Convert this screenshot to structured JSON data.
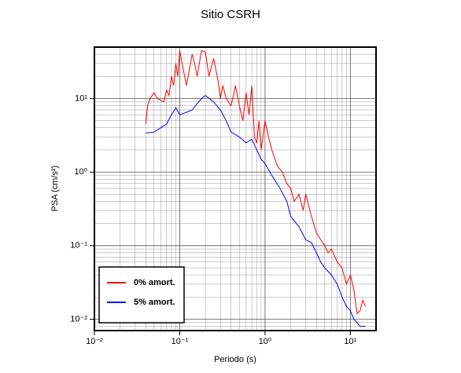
{
  "chart_data": {
    "type": "line",
    "title": "Sitio CSRH",
    "xlabel": "Periodo (s)",
    "ylabel": "PSA (cm/s²)",
    "xscale": "log",
    "yscale": "log",
    "grid": true,
    "legend": "lower left",
    "xlim": [
      0.01,
      20
    ],
    "ylim": [
      0.007,
      50
    ],
    "xticks": [
      {
        "value": 0.01,
        "label": "10⁻²"
      },
      {
        "value": 0.1,
        "label": "10⁻¹"
      },
      {
        "value": 1,
        "label": "10⁰"
      },
      {
        "value": 10,
        "label": "10¹"
      }
    ],
    "yticks": [
      {
        "value": 0.01,
        "label": "10⁻²"
      },
      {
        "value": 0.1,
        "label": "10⁻¹"
      },
      {
        "value": 1,
        "label": "10⁰"
      },
      {
        "value": 10,
        "label": "10¹"
      }
    ],
    "xminorticks": [
      0.02,
      0.03,
      0.04,
      0.05,
      0.06,
      0.07,
      0.08,
      0.09,
      0.2,
      0.3,
      0.4,
      0.5,
      0.6,
      0.7,
      0.8,
      0.9,
      2,
      3,
      4,
      5,
      6,
      7,
      8,
      9
    ],
    "yminorticks": [
      0.008,
      0.009,
      0.02,
      0.03,
      0.04,
      0.05,
      0.06,
      0.07,
      0.08,
      0.09,
      0.2,
      0.3,
      0.4,
      0.5,
      0.6,
      0.7,
      0.8,
      0.9,
      2,
      3,
      4,
      5,
      6,
      7,
      8,
      9,
      20,
      30,
      40
    ],
    "series": [
      {
        "name": "0% amort.",
        "color": "#ff0000",
        "x": [
          0.04,
          0.042,
          0.045,
          0.05,
          0.055,
          0.065,
          0.07,
          0.075,
          0.08,
          0.085,
          0.09,
          0.095,
          0.1,
          0.11,
          0.12,
          0.13,
          0.14,
          0.15,
          0.16,
          0.18,
          0.2,
          0.22,
          0.25,
          0.28,
          0.3,
          0.32,
          0.35,
          0.4,
          0.45,
          0.5,
          0.55,
          0.6,
          0.65,
          0.7,
          0.75,
          0.8,
          0.85,
          0.9,
          1.0,
          1.1,
          1.2,
          1.4,
          1.6,
          1.8,
          2.0,
          2.2,
          2.5,
          2.8,
          3.0,
          3.5,
          4.0,
          4.5,
          5.0,
          5.5,
          6,
          7,
          8,
          9,
          10,
          11,
          12,
          13,
          14,
          15
        ],
        "values": [
          4.5,
          8,
          10,
          12,
          10,
          9,
          13,
          11,
          20,
          15,
          30,
          20,
          45,
          25,
          15,
          25,
          40,
          30,
          20,
          45,
          43,
          20,
          35,
          18,
          10,
          15,
          10,
          8,
          15,
          8,
          5,
          12,
          6,
          15,
          3,
          2.5,
          5,
          2,
          5,
          3,
          2,
          1.2,
          1,
          0.7,
          0.6,
          0.4,
          0.5,
          0.3,
          0.5,
          0.25,
          0.15,
          0.12,
          0.1,
          0.08,
          0.09,
          0.06,
          0.05,
          0.03,
          0.04,
          0.025,
          0.012,
          0.013,
          0.018,
          0.015
        ]
      },
      {
        "name": "5% amort.",
        "color": "#0000ff",
        "x": [
          0.04,
          0.05,
          0.06,
          0.07,
          0.08,
          0.09,
          0.1,
          0.12,
          0.14,
          0.16,
          0.18,
          0.2,
          0.25,
          0.3,
          0.35,
          0.4,
          0.5,
          0.6,
          0.7,
          0.8,
          0.9,
          1.0,
          1.2,
          1.5,
          1.8,
          2.0,
          2.5,
          3.0,
          3.5,
          4.0,
          4.5,
          5.0,
          6.0,
          7.0,
          8.0,
          9.0,
          10,
          11,
          12,
          13,
          15
        ],
        "values": [
          3.4,
          3.5,
          4,
          4.5,
          6,
          7.5,
          6,
          6.5,
          7,
          8.5,
          10,
          11,
          9,
          7,
          5,
          3.5,
          3,
          2.5,
          2.8,
          2,
          1.5,
          1.3,
          0.9,
          0.6,
          0.4,
          0.25,
          0.18,
          0.12,
          0.11,
          0.08,
          0.06,
          0.05,
          0.04,
          0.03,
          0.02,
          0.015,
          0.013,
          0.01,
          0.009,
          0.008,
          0.008
        ]
      }
    ]
  }
}
